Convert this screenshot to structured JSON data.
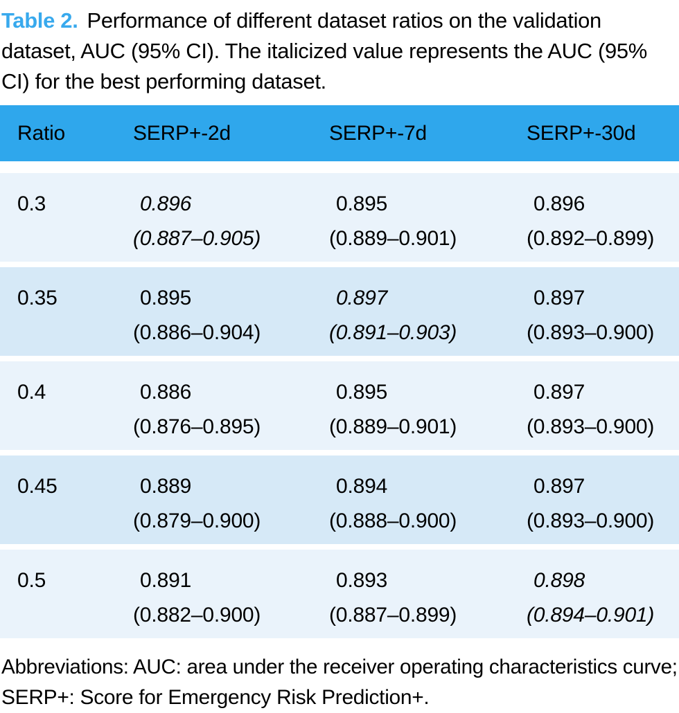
{
  "caption": {
    "label": "Table 2.",
    "lines": [
      "Performance of different dataset ratios on the validation",
      "dataset, AUC (95% CI). The italicized value represents the AUC (95%",
      "CI) for the best performing dataset."
    ]
  },
  "table": {
    "columns": [
      "Ratio",
      "SERP+-2d",
      "SERP+-7d",
      "SERP+-30d"
    ],
    "rows": [
      {
        "ratio": "0.3",
        "cells": [
          {
            "auc": "0.896",
            "ci": "(0.887–0.905)",
            "italic": true
          },
          {
            "auc": "0.895",
            "ci": "(0.889–0.901)",
            "italic": false
          },
          {
            "auc": "0.896",
            "ci": "(0.892–0.899)",
            "italic": false
          }
        ]
      },
      {
        "ratio": "0.35",
        "cells": [
          {
            "auc": "0.895",
            "ci": "(0.886–0.904)",
            "italic": false
          },
          {
            "auc": "0.897",
            "ci": "(0.891–0.903)",
            "italic": true
          },
          {
            "auc": "0.897",
            "ci": "(0.893–0.900)",
            "italic": false
          }
        ]
      },
      {
        "ratio": "0.4",
        "cells": [
          {
            "auc": "0.886",
            "ci": "(0.876–0.895)",
            "italic": false
          },
          {
            "auc": "0.895",
            "ci": "(0.889–0.901)",
            "italic": false
          },
          {
            "auc": "0.897",
            "ci": "(0.893–0.900)",
            "italic": false
          }
        ]
      },
      {
        "ratio": "0.45",
        "cells": [
          {
            "auc": "0.889",
            "ci": "(0.879–0.900)",
            "italic": false
          },
          {
            "auc": "0.894",
            "ci": "(0.888–0.900)",
            "italic": false
          },
          {
            "auc": "0.897",
            "ci": "(0.893–0.900)",
            "italic": false
          }
        ]
      },
      {
        "ratio": "0.5",
        "cells": [
          {
            "auc": "0.891",
            "ci": "(0.882–0.900)",
            "italic": false
          },
          {
            "auc": "0.893",
            "ci": "(0.887–0.899)",
            "italic": false
          },
          {
            "auc": "0.898",
            "ci": "(0.894–0.901)",
            "italic": true
          }
        ]
      }
    ]
  },
  "footnote": {
    "lines": [
      "Abbreviations: AUC: area under the receiver operating characteristics curve;",
      "SERP+: Score for Emergency Risk Prediction+."
    ]
  },
  "colors": {
    "header_bg": "#2fa7ec",
    "row_light": "#eaf3fb",
    "row_dark": "#d6e9f7",
    "caption_accent": "#38a9ed",
    "text": "#000000"
  }
}
